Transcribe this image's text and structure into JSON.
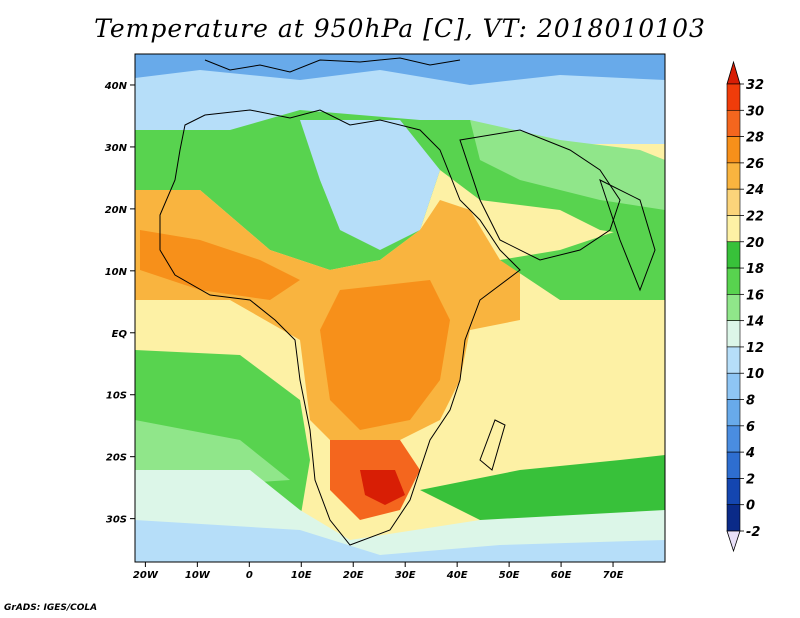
{
  "title": "Temperature at 950hPa [C], VT: 2018010103",
  "credit": "GrADS: IGES/COLA",
  "axes": {
    "x_ticks": [
      "20W",
      "10W",
      "0",
      "10E",
      "20E",
      "30E",
      "40E",
      "50E",
      "60E",
      "70E"
    ],
    "y_ticks": [
      "40N",
      "30N",
      "20N",
      "10N",
      "EQ",
      "10S",
      "20S",
      "30S"
    ],
    "lon_range": [
      -22,
      80
    ],
    "lat_range": [
      -37,
      45
    ]
  },
  "colorbar": {
    "labels": [
      "32",
      "30",
      "28",
      "26",
      "24",
      "22",
      "20",
      "18",
      "16",
      "14",
      "12",
      "10",
      "8",
      "6",
      "4",
      "2",
      "0",
      "-2"
    ],
    "colors": [
      "#d81e05",
      "#f03c0a",
      "#f4661e",
      "#f7901a",
      "#f9b43f",
      "#fbd47a",
      "#fdf1a5",
      "#38c13a",
      "#58d34f",
      "#90e68a",
      "#dcf6e8",
      "#b6def9",
      "#8ec5f4",
      "#68aaea",
      "#4a8de0",
      "#2e6ed0",
      "#1446b0",
      "#0a2a88",
      "#061e70"
    ],
    "over_color": "#d81e05",
    "under_color": "#e8e0f8"
  },
  "map": {
    "variable": "Temperature",
    "level": "950hPa",
    "units": "C",
    "valid_time": "2018010103"
  }
}
